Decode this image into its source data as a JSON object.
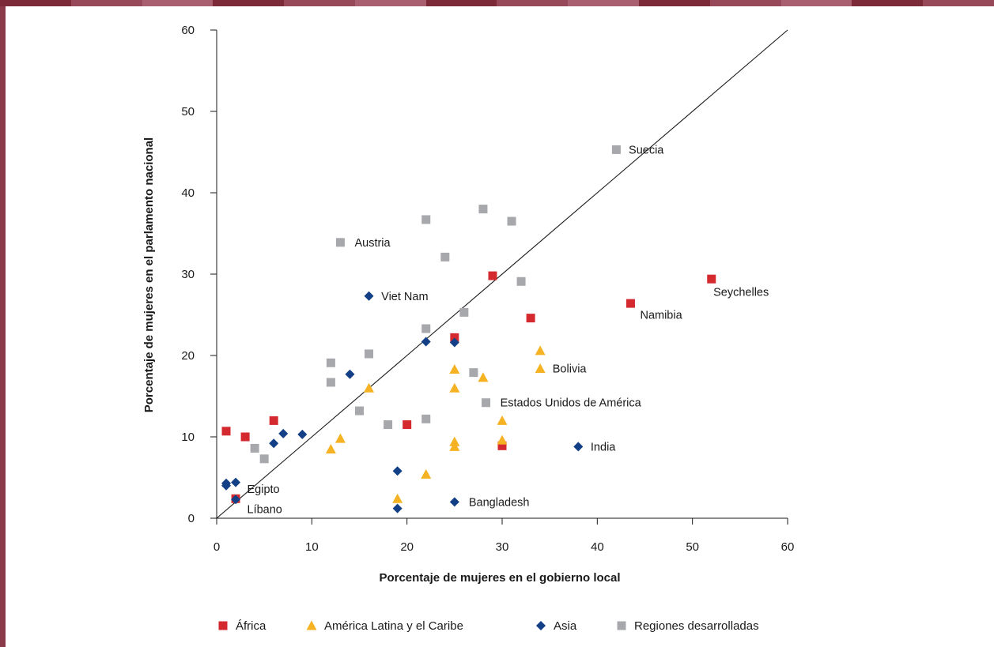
{
  "chart_data": {
    "type": "scatter",
    "title": "",
    "xlabel": "Porcentaje de mujeres en el gobierno local",
    "ylabel": "Porcentaje de mujeres en el parlamento nacional",
    "xlim": [
      0,
      60
    ],
    "ylim": [
      0,
      60
    ],
    "xticks": [
      "0",
      "10",
      "20",
      "30",
      "40",
      "50",
      "60"
    ],
    "yticks": [
      "0",
      "10",
      "20",
      "30",
      "40",
      "50",
      "60"
    ],
    "grid": false,
    "reference_line": "y = x",
    "legend_position": "bottom",
    "series": [
      {
        "name": "África",
        "color": "#d42a2f",
        "marker": "square",
        "points": [
          {
            "x": 1,
            "y": 10.7
          },
          {
            "x": 3,
            "y": 10
          },
          {
            "x": 6,
            "y": 12
          },
          {
            "x": 2,
            "y": 2.4
          },
          {
            "x": 20,
            "y": 11.5
          },
          {
            "x": 25,
            "y": 22.2
          },
          {
            "x": 29,
            "y": 29.8
          },
          {
            "x": 33,
            "y": 24.6
          },
          {
            "x": 30,
            "y": 8.9
          },
          {
            "x": 43.5,
            "y": 26.4
          },
          {
            "x": 52,
            "y": 29.4
          }
        ]
      },
      {
        "name": "América Latina y el Caribe",
        "color": "#f5b324",
        "marker": "triangle",
        "points": [
          {
            "x": 12,
            "y": 8.5
          },
          {
            "x": 13,
            "y": 9.8
          },
          {
            "x": 16,
            "y": 16
          },
          {
            "x": 19,
            "y": 2.4
          },
          {
            "x": 22,
            "y": 5.4
          },
          {
            "x": 25,
            "y": 18.3
          },
          {
            "x": 25,
            "y": 16
          },
          {
            "x": 25,
            "y": 9.4
          },
          {
            "x": 25,
            "y": 8.8
          },
          {
            "x": 28,
            "y": 17.3
          },
          {
            "x": 30,
            "y": 12
          },
          {
            "x": 30,
            "y": 9.6
          },
          {
            "x": 34,
            "y": 20.6
          },
          {
            "x": 34,
            "y": 18.4
          }
        ]
      },
      {
        "name": "Asia",
        "color": "#123f85",
        "marker": "diamond",
        "points": [
          {
            "x": 1,
            "y": 4.3
          },
          {
            "x": 1,
            "y": 4
          },
          {
            "x": 2,
            "y": 4.4
          },
          {
            "x": 2,
            "y": 2.3
          },
          {
            "x": 6,
            "y": 9.2
          },
          {
            "x": 7,
            "y": 10.4
          },
          {
            "x": 9,
            "y": 10.3
          },
          {
            "x": 14,
            "y": 17.7
          },
          {
            "x": 16,
            "y": 27.3
          },
          {
            "x": 19,
            "y": 5.8
          },
          {
            "x": 19,
            "y": 1.2
          },
          {
            "x": 22,
            "y": 21.7
          },
          {
            "x": 25,
            "y": 21.6
          },
          {
            "x": 25,
            "y": 2
          },
          {
            "x": 38,
            "y": 8.8
          }
        ]
      },
      {
        "name": "Regiones desarrolladas",
        "color": "#a6a8ab",
        "marker": "square",
        "points": [
          {
            "x": 4,
            "y": 8.6
          },
          {
            "x": 5,
            "y": 7.3
          },
          {
            "x": 12,
            "y": 19.1
          },
          {
            "x": 12,
            "y": 16.7
          },
          {
            "x": 13,
            "y": 33.9
          },
          {
            "x": 15,
            "y": 13.2
          },
          {
            "x": 16,
            "y": 20.2
          },
          {
            "x": 18,
            "y": 11.5
          },
          {
            "x": 22,
            "y": 36.7
          },
          {
            "x": 22,
            "y": 23.3
          },
          {
            "x": 22,
            "y": 12.2
          },
          {
            "x": 24,
            "y": 32.1
          },
          {
            "x": 26,
            "y": 25.3
          },
          {
            "x": 27,
            "y": 17.9
          },
          {
            "x": 28,
            "y": 38
          },
          {
            "x": 28.3,
            "y": 14.2
          },
          {
            "x": 31,
            "y": 36.5
          },
          {
            "x": 32,
            "y": 29.1
          },
          {
            "x": 42,
            "y": 45.3
          }
        ]
      }
    ],
    "annotations": [
      {
        "text": "Suecia",
        "x": 43.3,
        "y": 45.3
      },
      {
        "text": "Austria",
        "x": 14.5,
        "y": 33.9
      },
      {
        "text": "Viet Nam",
        "x": 17.3,
        "y": 27.3
      },
      {
        "text": "Seychelles",
        "x": 52.2,
        "y": 27.8
      },
      {
        "text": "Namibia",
        "x": 44.5,
        "y": 25
      },
      {
        "text": "Bolivia",
        "x": 35.3,
        "y": 18.4
      },
      {
        "text": "Estados Unidos de América",
        "x": 29.8,
        "y": 14.2
      },
      {
        "text": "India",
        "x": 39.3,
        "y": 8.8
      },
      {
        "text": "Egipto",
        "x": 3.2,
        "y": 3.6
      },
      {
        "text": "Líbano",
        "x": 3.2,
        "y": 1.1
      },
      {
        "text": "Bangladesh",
        "x": 26.5,
        "y": 2
      }
    ]
  },
  "colors": {
    "top_bar": [
      "#7d2a38",
      "#974859",
      "#a95f6f",
      "#7d2a38",
      "#974859",
      "#a95f6f",
      "#7d2a38",
      "#974859",
      "#a95f6f",
      "#7d2a38",
      "#974859",
      "#a95f6f",
      "#7d2a38",
      "#974859"
    ],
    "axis": "#1a1a1a"
  }
}
